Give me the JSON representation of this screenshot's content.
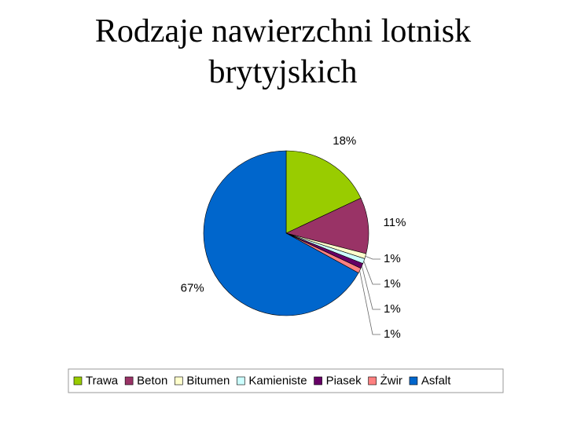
{
  "chart_data": {
    "type": "pie",
    "title": "Rodzaje nawierzchni lotnisk brytyjskich",
    "categories": [
      "Trawa",
      "Beton",
      "Bitumen",
      "Kamieniste",
      "Piasek",
      "Żwir",
      "Asfalt"
    ],
    "values": [
      18,
      11,
      1,
      1,
      1,
      1,
      67
    ],
    "value_labels": [
      "18%",
      "11%",
      "1%",
      "1%",
      "1%",
      "1%",
      "67%"
    ],
    "colors": [
      "#99cc00",
      "#993366",
      "#ffffcc",
      "#ccffff",
      "#660066",
      "#ff8080",
      "#0066cc"
    ],
    "legend": "bottom"
  }
}
